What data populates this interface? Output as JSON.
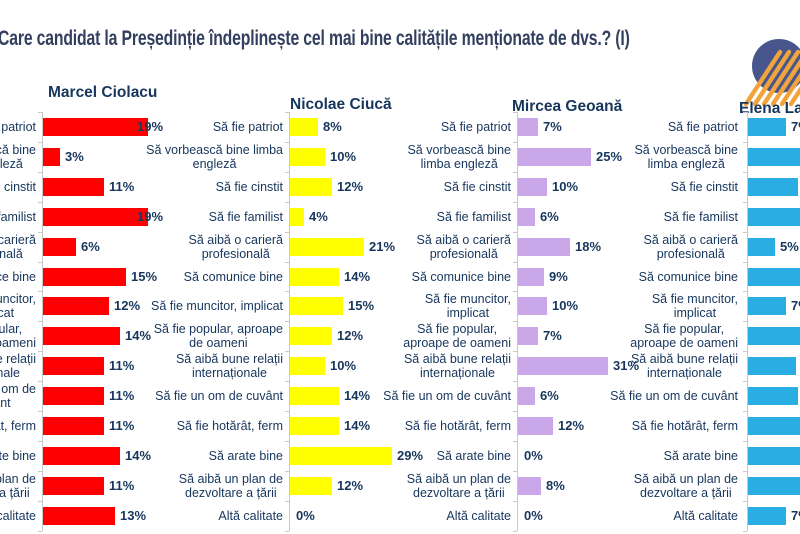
{
  "page": {
    "title": "Care candidat la Președinție îndeplinește cel mai bine calitățile menționate de dvs.? (I)"
  },
  "decoration": {
    "name": "circle-with-diagonal-stripes",
    "circle_color": "#47568D",
    "stripe_color": "#F2A43C"
  },
  "chart_data": {
    "type": "bar",
    "orientation": "horizontal",
    "layout": "small-multiples-4-columns",
    "unit": "%",
    "value_suffix": "%",
    "grid": false,
    "categories": [
      "Să fie patriot",
      "Să vorbească bine limba engleză",
      "Să fie cinstit",
      "Să fie familist",
      "Să aibă o carieră profesională",
      "Să comunice bine",
      "Să fie muncitor, implicat",
      "Să fie popular, aproape de oameni",
      "Să aibă bune relații internaționale",
      "Să fie un om de cuvânt",
      "Să fie hotărât, ferm",
      "Să arate bine",
      "Să aibă un plan de dezvoltare a țării",
      "Altă calitate"
    ],
    "series": [
      {
        "name": "Marcel Ciolacu",
        "color": "#FE0000",
        "values": [
          19,
          3,
          11,
          19,
          6,
          15,
          12,
          14,
          11,
          11,
          11,
          14,
          11,
          13
        ],
        "value_labels": [
          "19%",
          "3%",
          "11%",
          "19%",
          "6%",
          "15%",
          "12%",
          "14%",
          "11%",
          "11%",
          "11%",
          "14%",
          "11%",
          "13%"
        ],
        "labels_wrapped": [
          "Să fie patriot",
          "Să vorbească bine\nlimba engleză",
          "Să fie cinstit",
          "Să fie familist",
          "Să aibă o carieră\nprofesională",
          "Să comunice bine",
          "Să fie muncitor,\nimplicat",
          "Să fie popular,\naproape de oameni",
          "Să aibă bune relații\ninternaționale",
          "Să fie un om de\ncuvânt",
          "Să fie hotărât, ferm",
          "Să arate bine",
          "Să aibă un plan de\ndezvoltare a țării",
          "Altă calitate"
        ]
      },
      {
        "name": "Nicolae Ciucă",
        "color": "#FFFF00",
        "values": [
          8,
          10,
          12,
          4,
          21,
          14,
          15,
          12,
          10,
          14,
          14,
          29,
          12,
          0
        ],
        "value_labels": [
          "8%",
          "10%",
          "12%",
          "4%",
          "21%",
          "14%",
          "15%",
          "12%",
          "10%",
          "14%",
          "14%",
          "29%",
          "12%",
          "0%"
        ],
        "labels_wrapped": [
          "Să fie patriot",
          "Să vorbească bine limba\nengleză",
          "Să fie cinstit",
          "Să fie familist",
          "Să aibă o carieră\nprofesională",
          "Să comunice bine",
          "Să fie muncitor, implicat",
          "Să fie popular, aproape\nde oameni",
          "Să aibă bune relații\ninternaționale",
          "Să fie un om de cuvânt",
          "Să fie hotărât, ferm",
          "Să arate bine",
          "Să aibă un plan de\ndezvoltare a țării",
          "Altă calitate"
        ]
      },
      {
        "name": "Mircea Geoană",
        "color": "#C9A7E9",
        "values": [
          7,
          25,
          10,
          6,
          18,
          9,
          10,
          7,
          31,
          6,
          12,
          0,
          8,
          0
        ],
        "value_labels": [
          "7%",
          "25%",
          "10%",
          "6%",
          "18%",
          "9%",
          "10%",
          "7%",
          "31%",
          "6%",
          "12%",
          "0%",
          "8%",
          "0%"
        ],
        "labels_wrapped": [
          "Să fie patriot",
          "Să vorbească bine\nlimba engleză",
          "Să fie cinstit",
          "Să fie familist",
          "Să aibă o carieră\nprofesională",
          "Să comunice bine",
          "Să fie muncitor,\nimplicat",
          "Să fie popular,\naproape de oameni",
          "Să aibă bune relații\ninternaționale",
          "Să fie un om de cuvânt",
          "Să fie hotărât, ferm",
          "Să arate bine",
          "Să aibă un plan de\ndezvoltare a țării",
          "Altă calitate"
        ]
      },
      {
        "name": "Elena Lasconi",
        "color": "#29ADE3",
        "note": "column clipped by right edge of screenshot; null = value not visible",
        "values": [
          7,
          null,
          null,
          null,
          5,
          null,
          7,
          null,
          null,
          null,
          null,
          null,
          null,
          7
        ],
        "value_labels": [
          "7%",
          "",
          "",
          "",
          "5%",
          "",
          "7%",
          "",
          "",
          "",
          "",
          "",
          "",
          "7%"
        ],
        "labels_wrapped": [
          "Să fie patriot",
          "Să vorbească bine\nlimba engleză",
          "Să fie cinstit",
          "Să fie familist",
          "Să aibă o carieră\nprofesională",
          "Să comunice bine",
          "Să fie muncitor,\nimplicat",
          "Să fie popular,\naproape de oameni",
          "Să aibă bune relații\ninternaționale",
          "Să fie un om de cuvânt",
          "Să fie hotărât, ferm",
          "Să arate bine",
          "Să aibă un plan de\ndezvoltare a țării",
          "Altă calitate"
        ]
      }
    ]
  }
}
